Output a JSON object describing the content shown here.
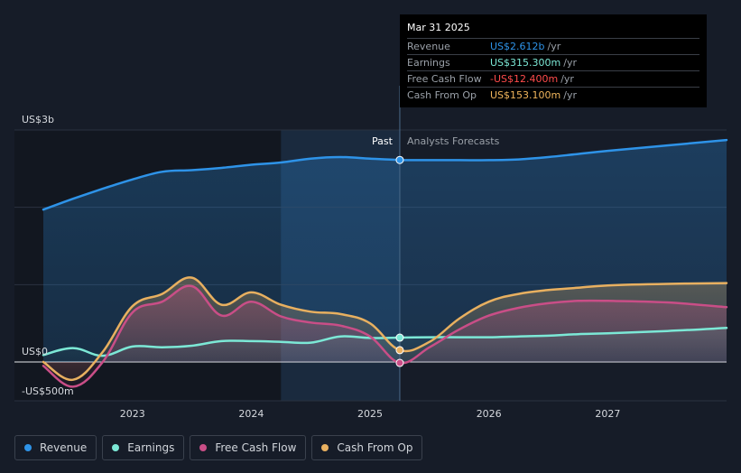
{
  "tooltip": {
    "date": "Mar 31 2025",
    "rows": [
      {
        "label": "Revenue",
        "value": "US$2.612b",
        "unit": "/yr",
        "color": "#2e93e8"
      },
      {
        "label": "Earnings",
        "value": "US$315.300m",
        "unit": "/yr",
        "color": "#7ce8d6"
      },
      {
        "label": "Free Cash Flow",
        "value": "-US$12.400m",
        "unit": "/yr",
        "color": "#ff4b4b"
      },
      {
        "label": "Cash From Op",
        "value": "US$153.100m",
        "unit": "/yr",
        "color": "#f0b55c"
      }
    ]
  },
  "legend": [
    {
      "label": "Revenue",
      "color": "#2e93e8"
    },
    {
      "label": "Earnings",
      "color": "#7ce8d6"
    },
    {
      "label": "Free Cash Flow",
      "color": "#c94e87"
    },
    {
      "label": "Cash From Op",
      "color": "#e8b060"
    }
  ],
  "chart_data": {
    "type": "line",
    "ylabels": [
      "US$3b",
      "US$0",
      "-US$500m"
    ],
    "ylim": [
      -500,
      3300
    ],
    "xlim": [
      2022.25,
      2028.0
    ],
    "xticks": [
      2023,
      2024,
      2025,
      2026,
      2027
    ],
    "xtick_labels": [
      "2023",
      "2024",
      "2025",
      "2026",
      "2027"
    ],
    "past_label": "Past",
    "forecast_label": "Analysts Forecasts",
    "divider_x": 2025.25,
    "highlight_start": 2024.25,
    "series": [
      {
        "name": "Revenue",
        "color": "#2e93e8",
        "x": [
          2022.25,
          2022.5,
          2022.75,
          2023.0,
          2023.25,
          2023.5,
          2023.75,
          2024.0,
          2024.25,
          2024.5,
          2024.75,
          2025.0,
          2025.25,
          2025.5,
          2025.75,
          2026.0,
          2026.25,
          2026.5,
          2026.75,
          2027.0,
          2027.5,
          2028.0
        ],
        "y": [
          1970,
          2110,
          2240,
          2360,
          2460,
          2480,
          2510,
          2550,
          2580,
          2630,
          2650,
          2630,
          2612,
          2610,
          2610,
          2610,
          2620,
          2650,
          2690,
          2730,
          2800,
          2870
        ]
      },
      {
        "name": "Earnings",
        "color": "#7ce8d6",
        "x": [
          2022.25,
          2022.5,
          2022.75,
          2023.0,
          2023.25,
          2023.5,
          2023.75,
          2024.0,
          2024.25,
          2024.5,
          2024.75,
          2025.0,
          2025.25,
          2025.5,
          2025.75,
          2026.0,
          2026.25,
          2026.5,
          2026.75,
          2027.0,
          2027.5,
          2028.0
        ],
        "y": [
          90,
          180,
          80,
          200,
          190,
          210,
          270,
          270,
          260,
          250,
          330,
          310,
          315,
          320,
          320,
          320,
          330,
          340,
          360,
          370,
          400,
          440
        ]
      },
      {
        "name": "Free Cash Flow",
        "color": "#c94e87",
        "x": [
          2022.25,
          2022.5,
          2022.75,
          2023.0,
          2023.25,
          2023.5,
          2023.75,
          2024.0,
          2024.25,
          2024.5,
          2024.75,
          2025.0,
          2025.25,
          2025.5,
          2025.75,
          2026.0,
          2026.25,
          2026.5,
          2026.75,
          2027.0,
          2027.5,
          2028.0
        ],
        "y": [
          -50,
          -320,
          0,
          640,
          780,
          980,
          600,
          780,
          590,
          510,
          470,
          330,
          -12,
          190,
          420,
          600,
          700,
          760,
          790,
          790,
          770,
          710
        ]
      },
      {
        "name": "Cash From Op",
        "color": "#e8b060",
        "x": [
          2022.25,
          2022.5,
          2022.75,
          2023.0,
          2023.25,
          2023.5,
          2023.75,
          2024.0,
          2024.25,
          2024.5,
          2024.75,
          2025.0,
          2025.25,
          2025.5,
          2025.75,
          2026.0,
          2026.25,
          2026.5,
          2026.75,
          2027.0,
          2027.5,
          2028.0
        ],
        "y": [
          0,
          -230,
          130,
          720,
          880,
          1090,
          740,
          900,
          740,
          650,
          620,
          500,
          153,
          260,
          560,
          780,
          880,
          930,
          960,
          990,
          1010,
          1020
        ]
      }
    ],
    "points_at_divider": [
      {
        "series": "Revenue",
        "y": 2612
      },
      {
        "series": "Earnings",
        "y": 315
      },
      {
        "series": "Free Cash Flow",
        "y": -12
      },
      {
        "series": "Cash From Op",
        "y": 153
      }
    ]
  }
}
